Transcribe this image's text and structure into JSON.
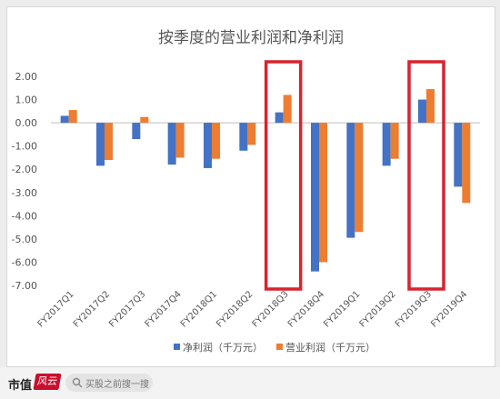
{
  "chart_data": {
    "type": "bar",
    "title": "按季度的营业利润和净利润",
    "categories": [
      "FY2017Q1",
      "FY2017Q2",
      "FY2017Q3",
      "FY2017Q4",
      "FY2018Q1",
      "FY2018Q2",
      "FY2018Q3",
      "FY2018Q4",
      "FY2019Q1",
      "FY2019Q2",
      "FY2019Q3",
      "FY2019Q4"
    ],
    "series": [
      {
        "name": "净利润（千万元）",
        "color": "#4472C4",
        "values": [
          0.3,
          -1.85,
          -0.7,
          -1.8,
          -1.95,
          -1.2,
          0.45,
          -6.4,
          -4.95,
          -1.85,
          1.0,
          -2.75
        ]
      },
      {
        "name": "营业利润（千万元）",
        "color": "#ED7D31",
        "values": [
          0.55,
          -1.6,
          0.25,
          -1.5,
          -1.55,
          -0.95,
          1.2,
          -6.0,
          -4.7,
          -1.55,
          1.45,
          -3.45
        ]
      }
    ],
    "ylim": [
      -7,
      2
    ],
    "yticks": [
      "2.00",
      "1.00",
      "0.00",
      "-1.00",
      "-2.00",
      "-3.00",
      "-4.00",
      "-5.00",
      "-6.00",
      "-7.00"
    ],
    "legend_position": "bottom",
    "grid": false,
    "highlighted_categories": [
      "FY2018Q3",
      "FY2019Q3"
    ],
    "highlight_color": "#D9232D"
  },
  "footer": {
    "brand": "市值",
    "brand_logo": "风云",
    "search_placeholder": "买股之前搜一搜"
  }
}
